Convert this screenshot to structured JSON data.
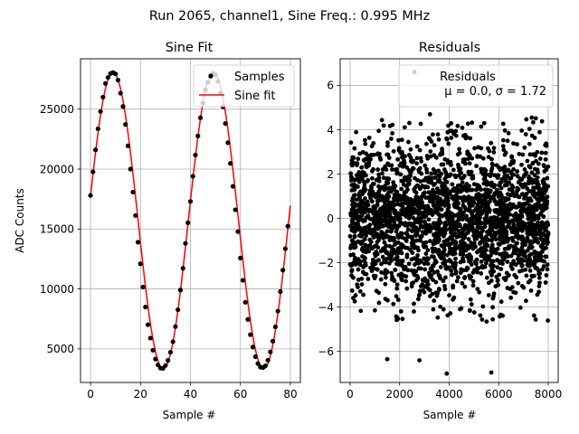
{
  "figure_title": "Run 2065, channel1, Sine Freq.: 0.995 MHz",
  "chart_data": [
    {
      "type": "line",
      "title": "Sine Fit",
      "xlabel": "Sample #",
      "ylabel": "ADC Counts",
      "xlim": [
        -4,
        84
      ],
      "ylim": [
        2200,
        29200
      ],
      "xticks": [
        0,
        20,
        40,
        60,
        80
      ],
      "yticks": [
        5000,
        10000,
        15000,
        20000,
        25000
      ],
      "xtick_labels": [
        "0",
        "20",
        "40",
        "60",
        "80"
      ],
      "ytick_labels": [
        "5000",
        "10000",
        "15000",
        "20000",
        "25000"
      ],
      "grid": true,
      "legend_position": "top-right",
      "legend": [
        "Samples",
        "Sine fit"
      ],
      "fit": {
        "offset": 15700,
        "amplitude": 12350,
        "period": 40.2,
        "phase_peak_sample": 9,
        "x_range": [
          0,
          80
        ]
      },
      "series": [
        {
          "name": "Samples",
          "style": "scatter",
          "color": "#000000",
          "x": [
            0,
            1,
            2,
            3,
            4,
            5,
            6,
            7,
            8,
            9,
            10,
            11,
            12,
            13,
            14,
            15,
            16,
            17,
            18,
            19,
            20,
            21,
            22,
            23,
            24,
            25,
            26,
            27,
            28,
            29,
            30,
            31,
            32,
            33,
            34,
            35,
            36,
            37,
            38,
            39,
            40,
            41,
            42,
            43,
            44,
            45,
            46,
            47,
            48,
            49,
            50,
            51,
            52,
            53,
            54,
            55,
            56,
            57,
            58,
            59,
            60,
            61,
            62,
            63,
            64,
            65,
            66,
            67,
            68,
            69,
            70,
            71,
            72,
            73,
            74,
            75,
            76,
            77,
            78,
            79
          ],
          "y": [
            17800,
            19770,
            21600,
            23360,
            24800,
            26000,
            27140,
            27640,
            27970,
            28050,
            27940,
            27420,
            26330,
            25220,
            23720,
            21940,
            20000,
            18080,
            16130,
            13900,
            12100,
            10160,
            8490,
            7020,
            5900,
            4890,
            4150,
            3660,
            3400,
            3380,
            3620,
            4040,
            4720,
            5600,
            6860,
            8260,
            9910,
            11720,
            13800,
            15520,
            17300,
            19400,
            21170,
            22760,
            24280,
            25490,
            26600,
            27250,
            27680,
            27990,
            27860,
            27330,
            26350,
            25200,
            23800,
            22200,
            20470,
            18560,
            16600,
            14780,
            12580,
            10720,
            8890,
            7460,
            6190,
            5150,
            4350,
            3780,
            3480,
            3440,
            3590,
            4050,
            4750,
            5640,
            6840,
            8150,
            9780,
            11570,
            13360,
            15240
          ]
        },
        {
          "name": "Sine fit",
          "style": "line",
          "color": "#ff0000"
        }
      ]
    },
    {
      "type": "scatter",
      "title": "Residuals",
      "xlabel": "Sample #",
      "ylabel": "",
      "xlim": [
        -400,
        8400
      ],
      "ylim": [
        -7.4,
        7.2
      ],
      "xticks": [
        0,
        2000,
        4000,
        6000,
        8000
      ],
      "yticks": [
        -6,
        -4,
        -2,
        0,
        2,
        4,
        6
      ],
      "xtick_labels": [
        "0",
        "2000",
        "4000",
        "6000",
        "8000"
      ],
      "ytick_labels": [
        "−6",
        "−4",
        "−2",
        "0",
        "2",
        "4",
        "6"
      ],
      "grid": true,
      "legend_position": "top-right",
      "legend": [
        "Residuals"
      ],
      "legend_stats": "μ = 0.0, σ = 1.72",
      "n_samples": 8000,
      "x_range": [
        0,
        8000
      ],
      "mean": 0.0,
      "sigma": 1.72,
      "color": "#000000",
      "outliers": [
        {
          "x": 2600,
          "y": 6.6
        },
        {
          "x": 5100,
          "y": 6.5
        },
        {
          "x": 3900,
          "y": -7.0
        },
        {
          "x": 5700,
          "y": -6.95
        },
        {
          "x": 2800,
          "y": -6.4
        },
        {
          "x": 1500,
          "y": -6.35
        }
      ]
    }
  ]
}
